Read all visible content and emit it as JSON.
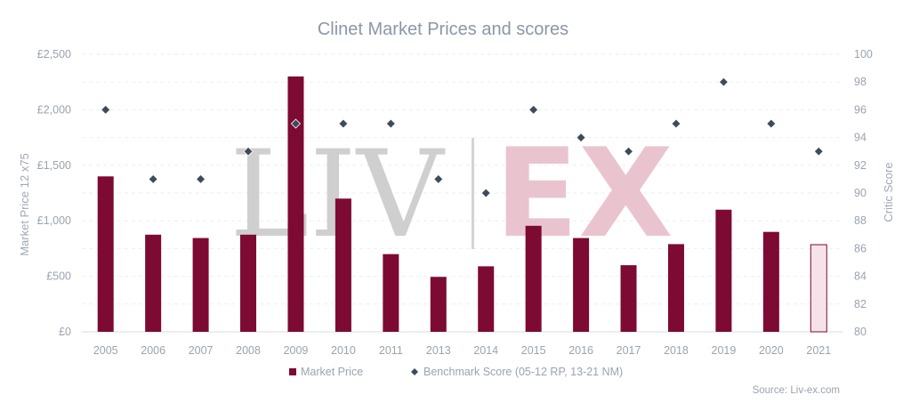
{
  "chart_data": {
    "type": "bar",
    "title": "Clinet Market Prices and scores",
    "categories": [
      "2005",
      "2006",
      "2007",
      "2008",
      "2009",
      "2010",
      "2011",
      "2013",
      "2014",
      "2015",
      "2016",
      "2017",
      "2018",
      "2019",
      "2020",
      "2021"
    ],
    "series": [
      {
        "name": "Market Price",
        "type": "bar",
        "axis": "left",
        "color": "#7d0a33",
        "values": [
          1400,
          875,
          845,
          875,
          2300,
          1200,
          700,
          495,
          590,
          955,
          845,
          600,
          790,
          1100,
          900,
          785
        ],
        "highlight_last_color": "#f6e3ea"
      },
      {
        "name": "Benchmark Score (05-12 RP, 13-21 NM)",
        "type": "scatter",
        "axis": "right",
        "color": "#3f4b5a",
        "values": [
          96,
          91,
          91,
          93,
          95,
          95,
          95,
          91,
          90,
          96,
          94,
          93,
          95,
          98,
          95,
          93
        ]
      }
    ],
    "ylabel": "Market Price 12 x75",
    "y2label": "Critic Score",
    "ylim": [
      0,
      2500
    ],
    "y2lim": [
      80,
      100
    ],
    "y_ticks": [
      "£0",
      "£500",
      "£1,000",
      "£1,500",
      "£2,000",
      "£2,500"
    ],
    "y2_ticks": [
      "80",
      "82",
      "84",
      "86",
      "88",
      "90",
      "92",
      "94",
      "96",
      "98",
      "100"
    ],
    "grid": true,
    "legend_position": "bottom",
    "watermark": {
      "left": "LIV",
      "right": "EX"
    },
    "source": "Source: Liv-ex.com"
  }
}
